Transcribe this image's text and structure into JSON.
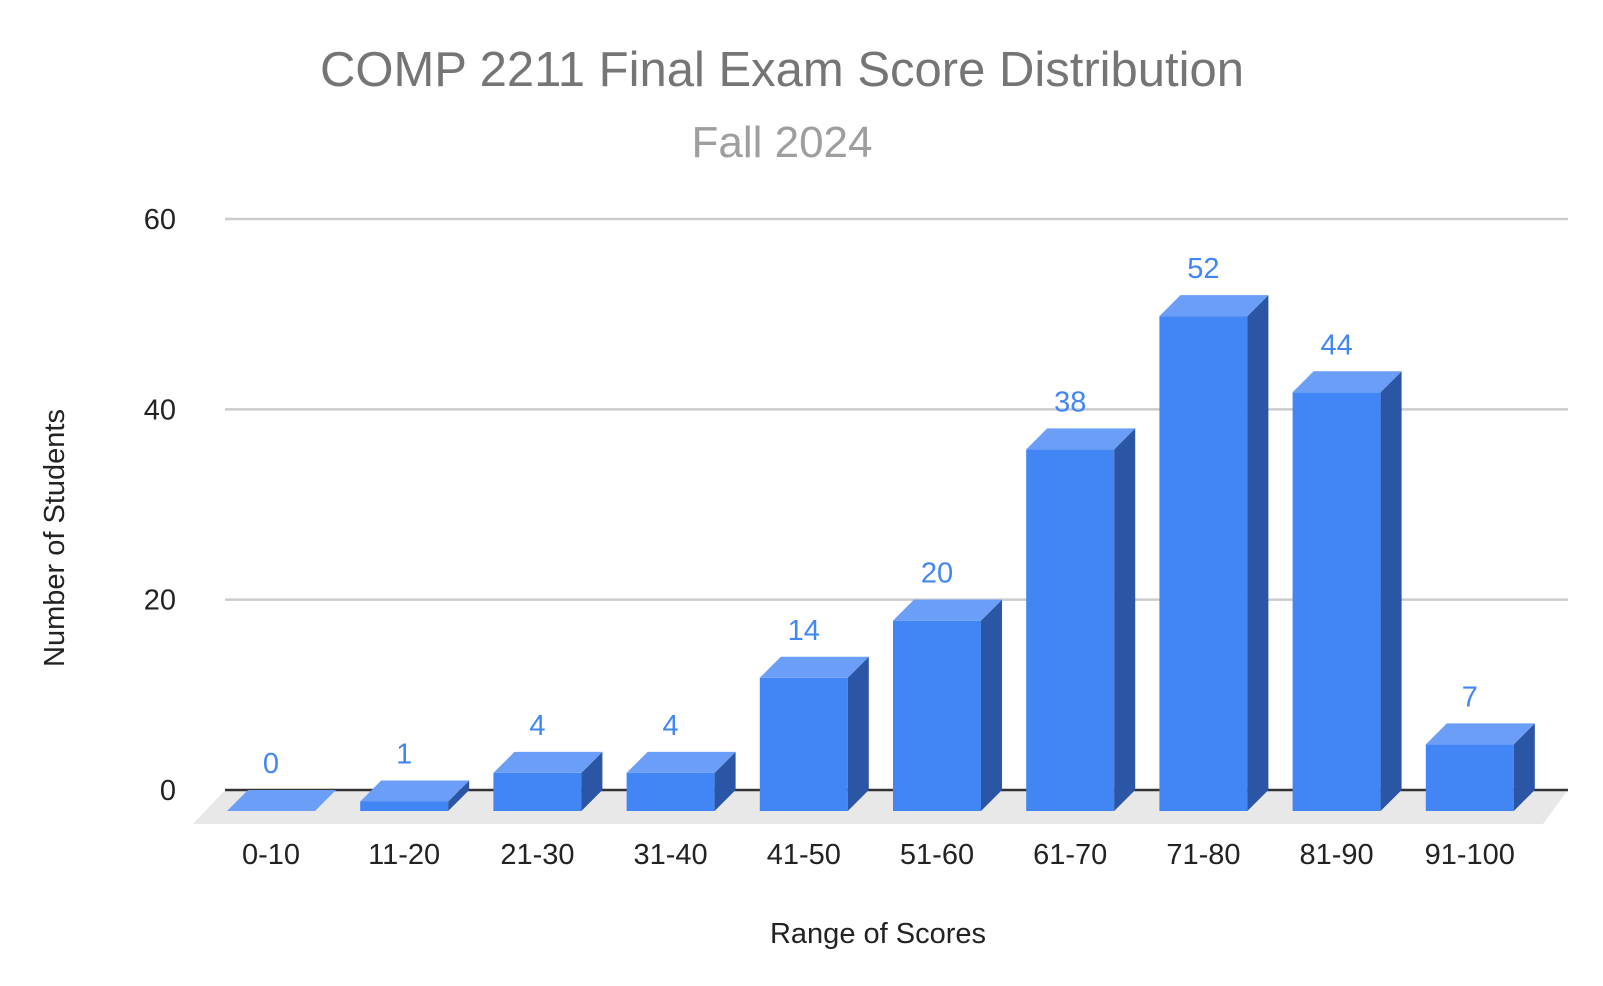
{
  "chart_data": {
    "type": "bar",
    "title": "COMP 2211 Final Exam Score Distribution",
    "subtitle": "Fall 2024",
    "xlabel": "Range of Scores",
    "ylabel": "Number of Students",
    "categories": [
      "0-10",
      "11-20",
      "21-30",
      "31-40",
      "41-50",
      "51-60",
      "61-70",
      "71-80",
      "81-90",
      "91-100"
    ],
    "values": [
      0,
      1,
      4,
      4,
      14,
      20,
      38,
      52,
      44,
      7
    ],
    "ylim": [
      0,
      60
    ],
    "yticks": [
      0,
      20,
      40,
      60
    ],
    "grid": true,
    "legend": "none",
    "style": "3d",
    "colors": {
      "bar_front": "#4285f4",
      "bar_top": "#6b9ef6",
      "bar_side": "#2b56a5",
      "label": "#4285f4",
      "grid": "#cccccc",
      "floor": "#e8e8e8",
      "baseline": "#333333"
    }
  }
}
